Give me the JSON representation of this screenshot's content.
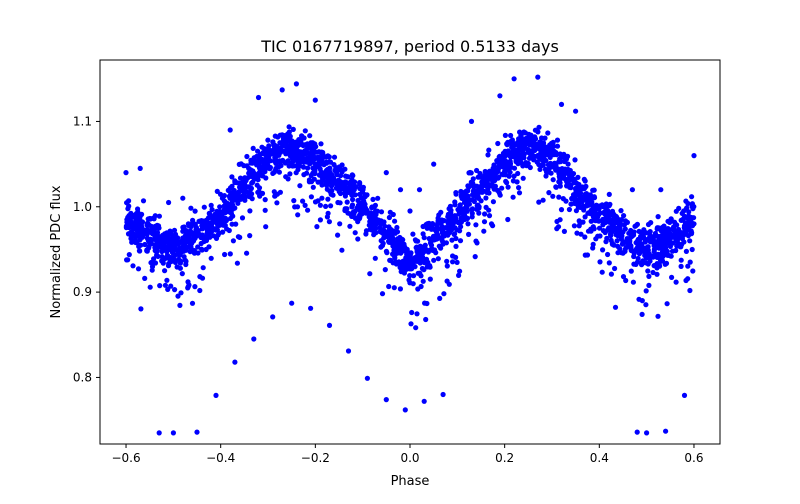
{
  "chart_data": {
    "type": "scatter",
    "title": "TIC 0167719897, period 0.5133 days",
    "xlabel": "Phase",
    "ylabel": "Normalized PDC flux",
    "xlim": [
      -0.655,
      0.655
    ],
    "ylim": [
      0.722,
      1.172
    ],
    "x_ticks": [
      -0.6,
      -0.4,
      -0.2,
      0.0,
      0.2,
      0.4,
      0.6
    ],
    "x_tick_labels": [
      "−0.6",
      "−0.4",
      "−0.2",
      "0.0",
      "0.2",
      "0.4",
      "0.6"
    ],
    "y_ticks": [
      0.8,
      0.9,
      1.0,
      1.1
    ],
    "y_tick_labels": [
      "0.8",
      "0.9",
      "1.0",
      "1.1"
    ],
    "grid": false,
    "legend": "none",
    "marker_color": "#0000ff",
    "series": [
      {
        "curve_description": "dense phase-folded light curve",
        "x_range": [
          -0.6,
          0.6
        ],
        "curve_points": [
          {
            "x": -0.6,
            "y": 0.985
          },
          {
            "x": -0.5,
            "y": 0.948
          },
          {
            "x": -0.4,
            "y": 0.99
          },
          {
            "x": -0.3,
            "y": 1.058
          },
          {
            "x": -0.26,
            "y": 1.07
          },
          {
            "x": -0.2,
            "y": 1.055
          },
          {
            "x": -0.1,
            "y": 1.0
          },
          {
            "x": 0.0,
            "y": 0.935
          },
          {
            "x": 0.1,
            "y": 0.99
          },
          {
            "x": 0.2,
            "y": 1.055
          },
          {
            "x": 0.26,
            "y": 1.07
          },
          {
            "x": 0.3,
            "y": 1.058
          },
          {
            "x": 0.4,
            "y": 0.99
          },
          {
            "x": 0.5,
            "y": 0.948
          },
          {
            "x": 0.6,
            "y": 0.985
          }
        ],
        "outliers": [
          {
            "x": -0.53,
            "y": 0.735
          },
          {
            "x": -0.5,
            "y": 0.735
          },
          {
            "x": -0.45,
            "y": 0.736
          },
          {
            "x": -0.41,
            "y": 0.779
          },
          {
            "x": -0.37,
            "y": 0.818
          },
          {
            "x": -0.33,
            "y": 0.845
          },
          {
            "x": -0.29,
            "y": 0.871
          },
          {
            "x": -0.25,
            "y": 0.887
          },
          {
            "x": -0.21,
            "y": 0.881
          },
          {
            "x": -0.17,
            "y": 0.861
          },
          {
            "x": -0.13,
            "y": 0.831
          },
          {
            "x": -0.09,
            "y": 0.799
          },
          {
            "x": -0.05,
            "y": 0.774
          },
          {
            "x": -0.01,
            "y": 0.762
          },
          {
            "x": 0.03,
            "y": 0.772
          },
          {
            "x": 0.07,
            "y": 0.78
          },
          {
            "x": 0.48,
            "y": 0.736
          },
          {
            "x": 0.5,
            "y": 0.735
          },
          {
            "x": 0.54,
            "y": 0.737
          },
          {
            "x": 0.58,
            "y": 0.779
          },
          {
            "x": -0.24,
            "y": 1.144
          },
          {
            "x": -0.27,
            "y": 1.137
          },
          {
            "x": -0.32,
            "y": 1.128
          },
          {
            "x": -0.2,
            "y": 1.125
          },
          {
            "x": 0.22,
            "y": 1.15
          },
          {
            "x": 0.27,
            "y": 1.152
          },
          {
            "x": 0.19,
            "y": 1.13
          },
          {
            "x": 0.32,
            "y": 1.12
          },
          {
            "x": 0.35,
            "y": 1.112
          },
          {
            "x": 0.13,
            "y": 1.1
          },
          {
            "x": -0.38,
            "y": 1.09
          },
          {
            "x": -0.6,
            "y": 1.04
          },
          {
            "x": -0.57,
            "y": 1.045
          },
          {
            "x": 0.6,
            "y": 1.06
          },
          {
            "x": 0.47,
            "y": 1.02
          },
          {
            "x": 0.53,
            "y": 1.02
          },
          {
            "x": -0.48,
            "y": 1.01
          },
          {
            "x": -0.51,
            "y": 1.005
          },
          {
            "x": 0.02,
            "y": 1.02
          },
          {
            "x": -0.02,
            "y": 1.02
          },
          {
            "x": 0.0,
            "y": 0.995
          },
          {
            "x": -0.05,
            "y": 1.04
          },
          {
            "x": 0.05,
            "y": 1.05
          }
        ]
      }
    ]
  }
}
